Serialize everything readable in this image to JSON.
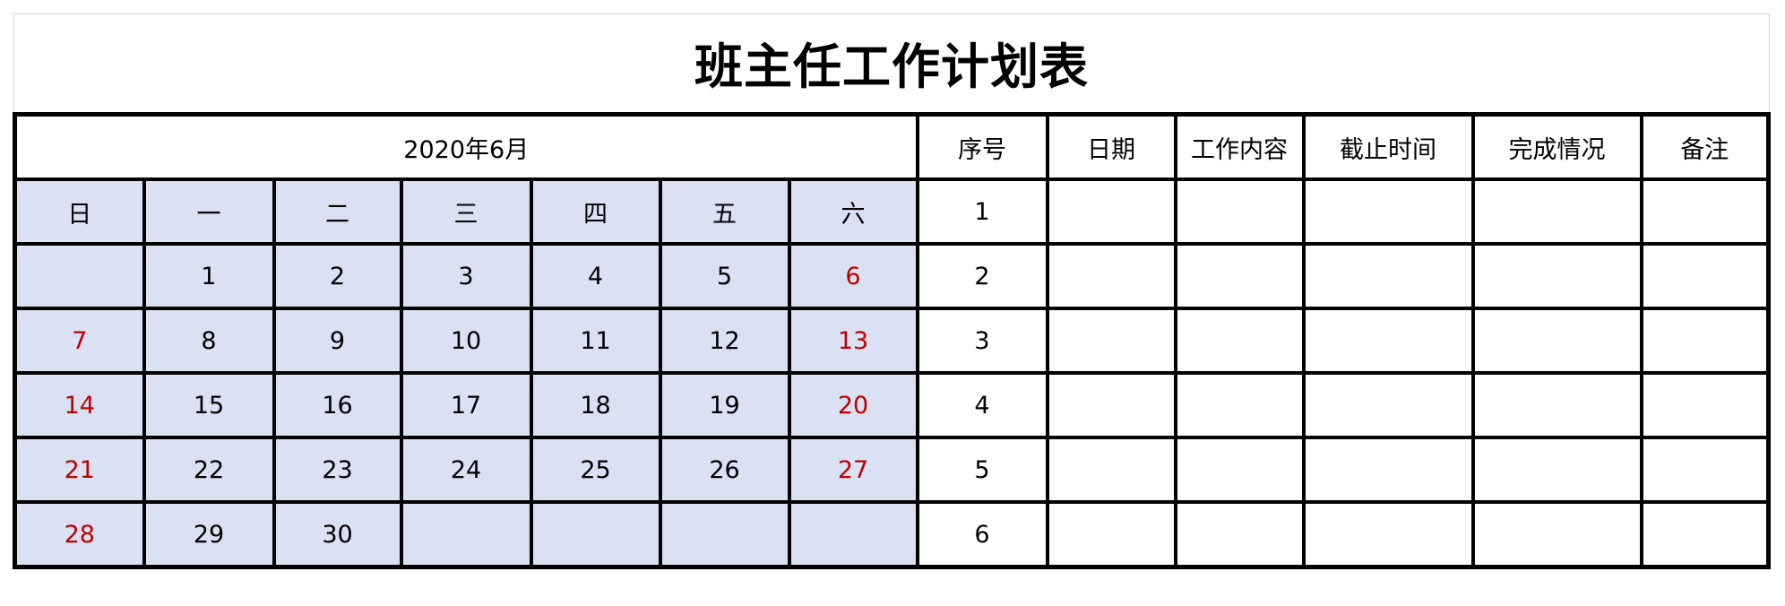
{
  "title": "班主任工作计划表",
  "calendar": {
    "month_label": "2020年6月",
    "weekdays": [
      "日",
      "一",
      "二",
      "三",
      "四",
      "五",
      "六"
    ],
    "weeks": [
      [
        "",
        "1",
        "2",
        "3",
        "4",
        "5",
        "6"
      ],
      [
        "7",
        "8",
        "9",
        "10",
        "11",
        "12",
        "13"
      ],
      [
        "14",
        "15",
        "16",
        "17",
        "18",
        "19",
        "20"
      ],
      [
        "21",
        "22",
        "23",
        "24",
        "25",
        "26",
        "27"
      ],
      [
        "28",
        "29",
        "30",
        "",
        "",
        "",
        ""
      ]
    ],
    "weekend_color": "#c00000",
    "fill_color": "#d9e1f2"
  },
  "plan": {
    "headers": [
      "序号",
      "日期",
      "工作内容",
      "截止时间",
      "完成情况",
      "备注"
    ],
    "rows": [
      [
        "1",
        "",
        "",
        "",
        "",
        ""
      ],
      [
        "2",
        "",
        "",
        "",
        "",
        ""
      ],
      [
        "3",
        "",
        "",
        "",
        "",
        ""
      ],
      [
        "4",
        "",
        "",
        "",
        "",
        ""
      ],
      [
        "5",
        "",
        "",
        "",
        "",
        ""
      ],
      [
        "6",
        "",
        "",
        "",
        "",
        ""
      ]
    ]
  }
}
